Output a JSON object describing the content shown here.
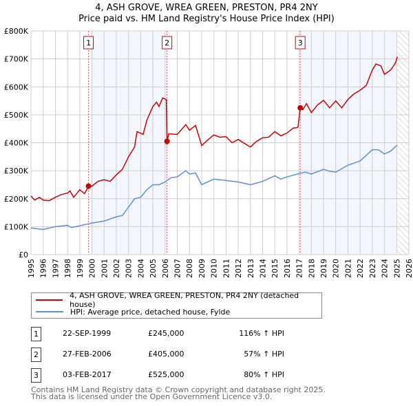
{
  "title": "4, ASH GROVE, WREA GREEN, PRESTON, PR4 2NY",
  "subtitle": "Price paid vs. HM Land Registry's House Price Index (HPI)",
  "chart_data": {
    "type": "line",
    "xlim": [
      1995,
      2026
    ],
    "ylim": [
      0,
      800000
    ],
    "yticks": [
      {
        "v": 0,
        "label": "£0"
      },
      {
        "v": 100000,
        "label": "£100K"
      },
      {
        "v": 200000,
        "label": "£200K"
      },
      {
        "v": 300000,
        "label": "£300K"
      },
      {
        "v": 400000,
        "label": "£400K"
      },
      {
        "v": 500000,
        "label": "£500K"
      },
      {
        "v": 600000,
        "label": "£600K"
      },
      {
        "v": 700000,
        "label": "£700K"
      },
      {
        "v": 800000,
        "label": "£800K"
      }
    ],
    "xticks": [
      "1995",
      "1996",
      "1997",
      "1998",
      "1999",
      "2000",
      "2001",
      "2002",
      "2003",
      "2004",
      "2005",
      "2006",
      "2007",
      "2008",
      "2009",
      "2010",
      "2011",
      "2012",
      "2013",
      "2014",
      "2015",
      "2016",
      "2017",
      "2018",
      "2019",
      "2020",
      "2021",
      "2022",
      "2023",
      "2024",
      "2025",
      "2026"
    ],
    "series": [
      {
        "name": "4, ASH GROVE, WREA GREEN, PRESTON, PR4 2NY (detached house)",
        "color": "#cc0000",
        "points": [
          [
            1995,
            210
          ],
          [
            1995.3,
            195
          ],
          [
            1995.7,
            205
          ],
          [
            1996,
            195
          ],
          [
            1996.5,
            193
          ],
          [
            1997,
            205
          ],
          [
            1997.5,
            215
          ],
          [
            1998,
            220
          ],
          [
            1998.2,
            228
          ],
          [
            1998.5,
            205
          ],
          [
            1999,
            232
          ],
          [
            1999.4,
            218
          ],
          [
            1999.72,
            245
          ],
          [
            2000,
            245
          ],
          [
            2000.5,
            262
          ],
          [
            2001,
            268
          ],
          [
            2001.5,
            262
          ],
          [
            2002,
            285
          ],
          [
            2002.5,
            305
          ],
          [
            2003,
            350
          ],
          [
            2003.5,
            385
          ],
          [
            2003.7,
            440
          ],
          [
            2004.2,
            430
          ],
          [
            2004.5,
            480
          ],
          [
            2005,
            530
          ],
          [
            2005.3,
            545
          ],
          [
            2005.5,
            530
          ],
          [
            2005.8,
            560
          ],
          [
            2006.1,
            555
          ],
          [
            2006.16,
            405
          ],
          [
            2006.3,
            432
          ],
          [
            2007,
            430
          ],
          [
            2007.7,
            465
          ],
          [
            2008,
            445
          ],
          [
            2008.5,
            462
          ],
          [
            2008.8,
            420
          ],
          [
            2009,
            390
          ],
          [
            2009.5,
            410
          ],
          [
            2010,
            428
          ],
          [
            2010.5,
            420
          ],
          [
            2011,
            422
          ],
          [
            2011.5,
            400
          ],
          [
            2012,
            412
          ],
          [
            2012.5,
            398
          ],
          [
            2013,
            385
          ],
          [
            2013.5,
            405
          ],
          [
            2014,
            418
          ],
          [
            2014.5,
            420
          ],
          [
            2015,
            440
          ],
          [
            2015.5,
            425
          ],
          [
            2016,
            435
          ],
          [
            2016.5,
            452
          ],
          [
            2016.9,
            455
          ],
          [
            2017.09,
            525
          ],
          [
            2017.3,
            518
          ],
          [
            2017.6,
            540
          ],
          [
            2018,
            508
          ],
          [
            2018.5,
            535
          ],
          [
            2019,
            552
          ],
          [
            2019.5,
            525
          ],
          [
            2020,
            550
          ],
          [
            2020.5,
            525
          ],
          [
            2021,
            555
          ],
          [
            2021.5,
            575
          ],
          [
            2022,
            588
          ],
          [
            2022.5,
            605
          ],
          [
            2023,
            660
          ],
          [
            2023.3,
            682
          ],
          [
            2023.7,
            675
          ],
          [
            2024,
            645
          ],
          [
            2024.5,
            660
          ],
          [
            2024.9,
            685
          ],
          [
            2025.05,
            708
          ]
        ]
      },
      {
        "name": "HPI: Average price, detached house, Fylde",
        "color": "#5b8fd6",
        "points": [
          [
            1995,
            95
          ],
          [
            1996,
            90
          ],
          [
            1997,
            100
          ],
          [
            1998,
            105
          ],
          [
            1998.3,
            97
          ],
          [
            1999,
            103
          ],
          [
            2000,
            113
          ],
          [
            2001,
            120
          ],
          [
            2002,
            135
          ],
          [
            2002.5,
            140
          ],
          [
            2003,
            170
          ],
          [
            2003.5,
            200
          ],
          [
            2004,
            205
          ],
          [
            2004.5,
            232
          ],
          [
            2005,
            250
          ],
          [
            2005.5,
            250
          ],
          [
            2006,
            260
          ],
          [
            2006.5,
            275
          ],
          [
            2007,
            278
          ],
          [
            2007.7,
            300
          ],
          [
            2008,
            288
          ],
          [
            2008.5,
            292
          ],
          [
            2009,
            250
          ],
          [
            2010,
            270
          ],
          [
            2011,
            265
          ],
          [
            2012,
            260
          ],
          [
            2013,
            250
          ],
          [
            2014,
            262
          ],
          [
            2015,
            282
          ],
          [
            2015.5,
            270
          ],
          [
            2016,
            278
          ],
          [
            2017,
            290
          ],
          [
            2017.5,
            295
          ],
          [
            2018,
            288
          ],
          [
            2019,
            305
          ],
          [
            2019.5,
            298
          ],
          [
            2020,
            295
          ],
          [
            2021,
            320
          ],
          [
            2022,
            335
          ],
          [
            2023,
            375
          ],
          [
            2023.5,
            375
          ],
          [
            2024,
            360
          ],
          [
            2024.5,
            370
          ],
          [
            2025.05,
            392
          ]
        ]
      }
    ],
    "sales": [
      {
        "label": "1",
        "x": 1999.72,
        "y": 245
      },
      {
        "label": "2",
        "x": 2006.16,
        "y": 405
      },
      {
        "label": "3",
        "x": 2017.09,
        "y": 525
      }
    ],
    "shaded": [
      [
        2000,
        2006.16
      ],
      [
        2017.09,
        2025
      ]
    ],
    "forecast_from": 2025
  },
  "legend": {
    "red": "4, ASH GROVE, WREA GREEN, PRESTON, PR4 2NY (detached house)",
    "blue": "HPI: Average price, detached house, Fylde"
  },
  "sales_table": [
    {
      "num": "1",
      "date": "22-SEP-1999",
      "price": "£245,000",
      "hpi": "116% ↑ HPI"
    },
    {
      "num": "2",
      "date": "27-FEB-2006",
      "price": "£405,000",
      "hpi": "57% ↑ HPI"
    },
    {
      "num": "3",
      "date": "03-FEB-2017",
      "price": "£525,000",
      "hpi": "80% ↑ HPI"
    }
  ],
  "footer": [
    "Contains HM Land Registry data © Crown copyright and database right 2025.",
    "This data is licensed under the Open Government Licence v3.0."
  ]
}
